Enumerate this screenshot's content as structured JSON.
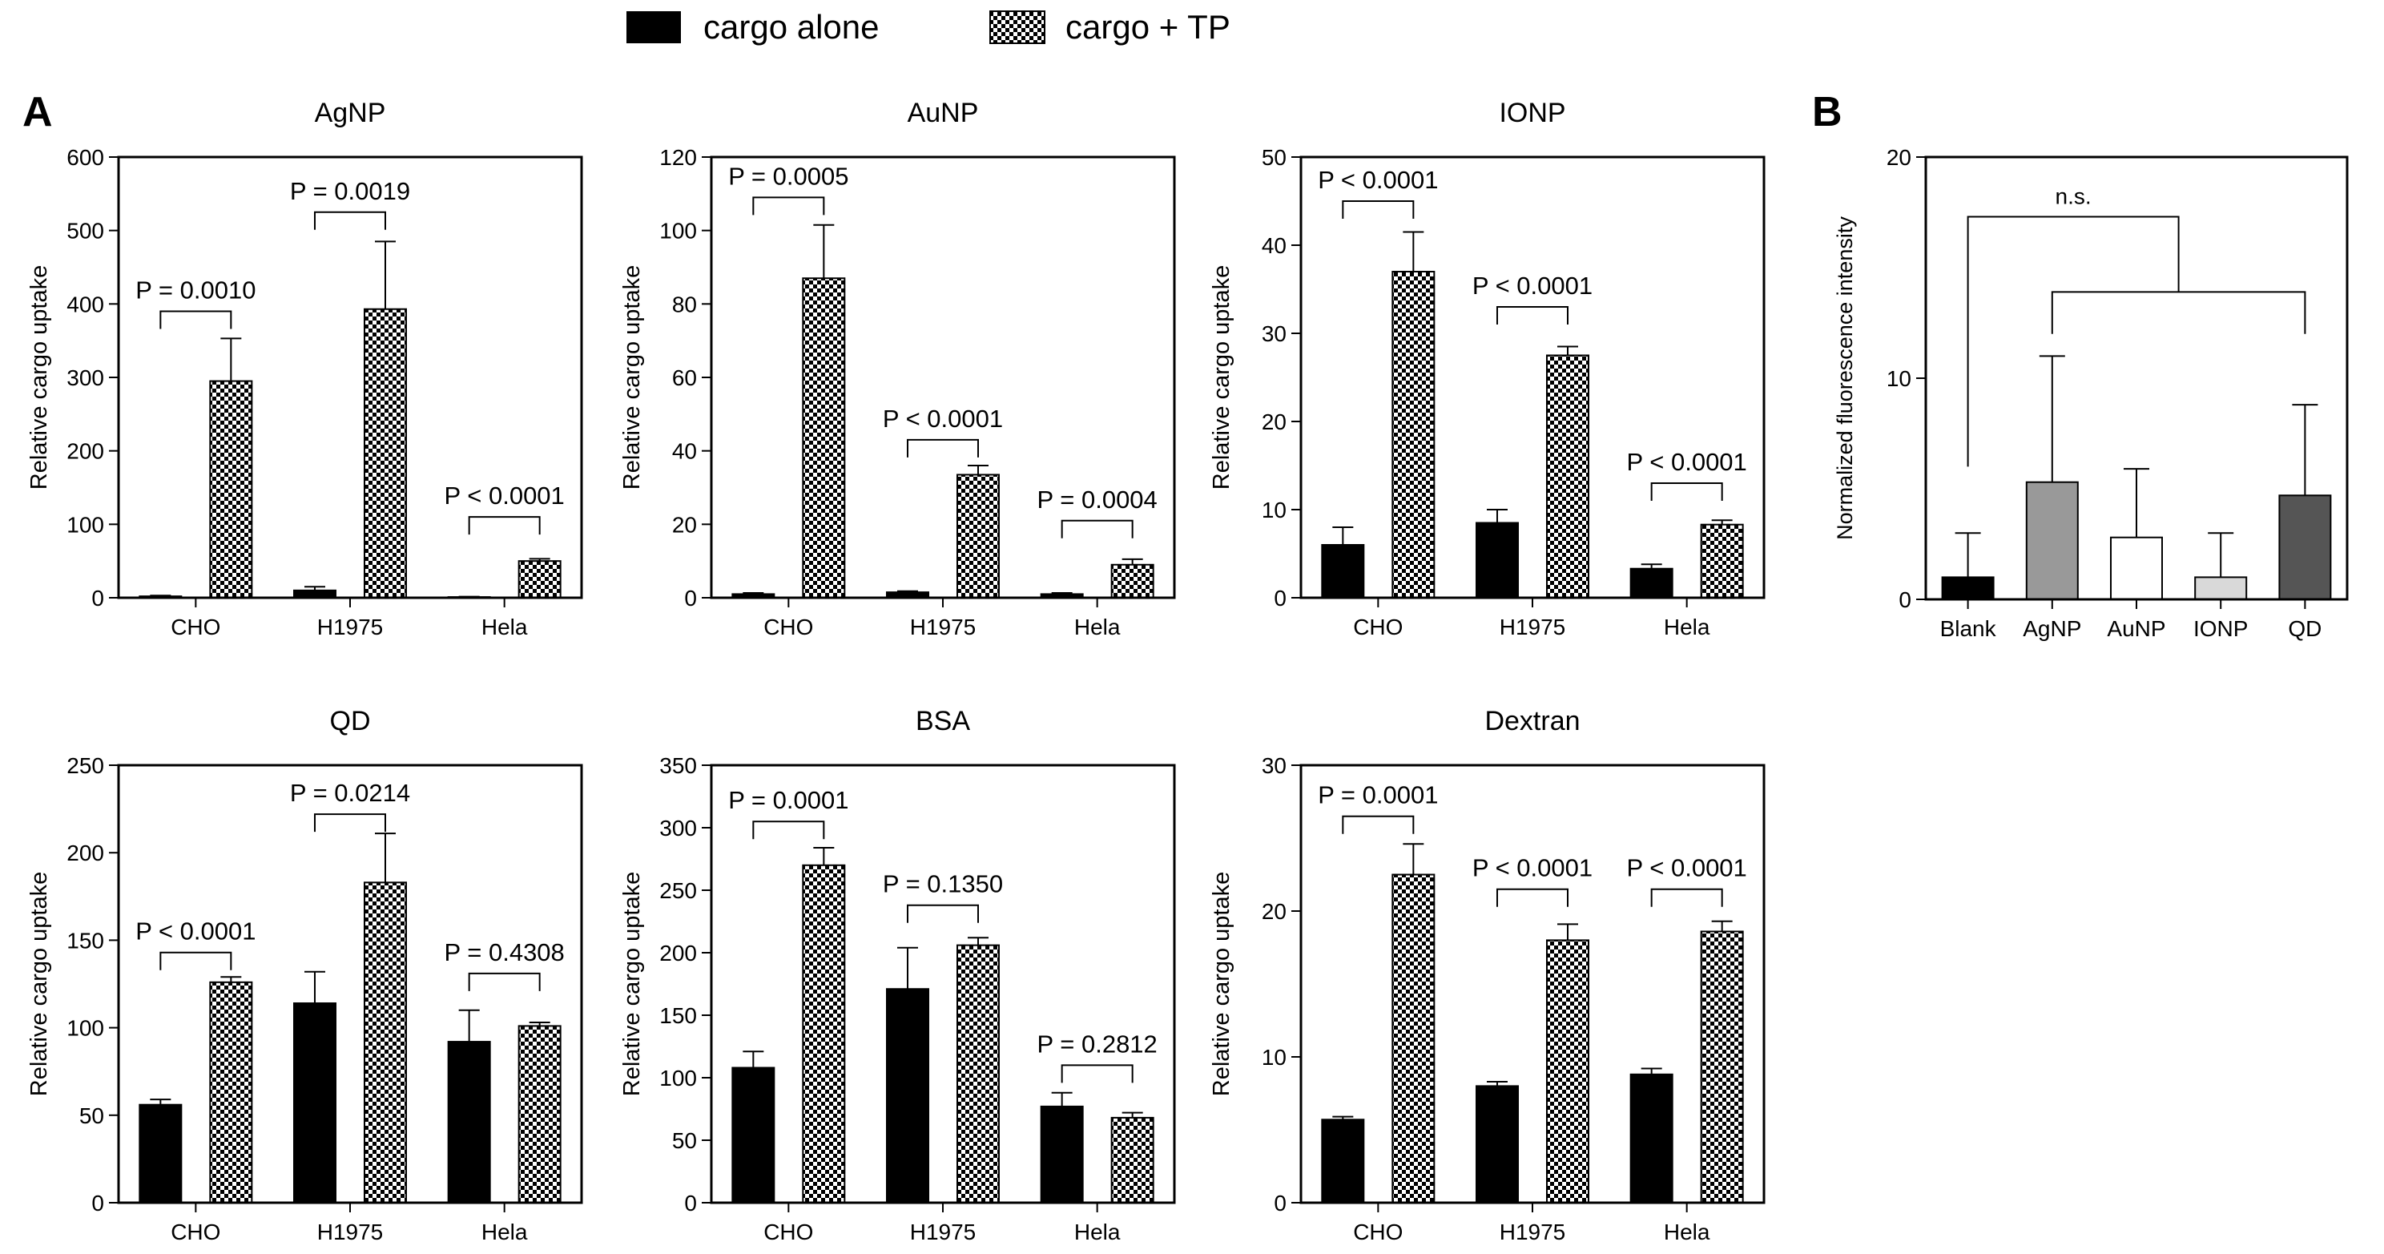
{
  "legend": {
    "series": [
      {
        "name": "cargo alone",
        "fill": "solid"
      },
      {
        "name": "cargo + TP",
        "fill": "checker"
      }
    ]
  },
  "panel_labels": {
    "A": "A",
    "B": "B"
  },
  "chart_data": [
    {
      "type": "bar",
      "panel": "A",
      "title": "AgNP",
      "ylabel": "Relative cargo uptake",
      "xlabel": "",
      "categories": [
        "CHO",
        "H1975",
        "Hela"
      ],
      "ylim": [
        0,
        600
      ],
      "yticks": [
        0,
        100,
        200,
        300,
        400,
        500,
        600
      ],
      "series": [
        {
          "name": "cargo alone",
          "values": [
            2,
            10,
            1
          ],
          "errors": [
            1,
            5,
            0.5
          ]
        },
        {
          "name": "cargo + TP",
          "values": [
            295,
            393,
            50
          ],
          "errors": [
            58,
            92,
            3
          ]
        }
      ],
      "annotations": [
        {
          "category": "CHO",
          "text": "P = 0.0010",
          "top": 390
        },
        {
          "category": "H1975",
          "text": "P = 0.0019",
          "top": 525
        },
        {
          "category": "Hela",
          "text": "P < 0.0001",
          "top": 110
        }
      ]
    },
    {
      "type": "bar",
      "panel": "A",
      "title": "AuNP",
      "ylabel": "Relative cargo uptake",
      "xlabel": "",
      "categories": [
        "CHO",
        "H1975",
        "Hela"
      ],
      "ylim": [
        0,
        120
      ],
      "yticks": [
        0,
        20,
        40,
        60,
        80,
        100,
        120
      ],
      "series": [
        {
          "name": "cargo alone",
          "values": [
            1,
            1.5,
            1
          ],
          "errors": [
            0.3,
            0.3,
            0.3
          ]
        },
        {
          "name": "cargo + TP",
          "values": [
            87,
            33.5,
            9
          ],
          "errors": [
            14.5,
            2.5,
            1.5
          ]
        }
      ],
      "annotations": [
        {
          "category": "CHO",
          "text": "P = 0.0005",
          "top": 109
        },
        {
          "category": "H1975",
          "text": "P < 0.0001",
          "top": 43
        },
        {
          "category": "Hela",
          "text": "P = 0.0004",
          "top": 21
        }
      ]
    },
    {
      "type": "bar",
      "panel": "A",
      "title": "IONP",
      "ylabel": "Relative cargo uptake",
      "xlabel": "",
      "categories": [
        "CHO",
        "H1975",
        "Hela"
      ],
      "ylim": [
        0,
        50
      ],
      "yticks": [
        0,
        10,
        20,
        30,
        40,
        50
      ],
      "series": [
        {
          "name": "cargo alone",
          "values": [
            6,
            8.5,
            3.3
          ],
          "errors": [
            2,
            1.5,
            0.5
          ]
        },
        {
          "name": "cargo + TP",
          "values": [
            37,
            27.5,
            8.3
          ],
          "errors": [
            4.5,
            1,
            0.5
          ]
        }
      ],
      "annotations": [
        {
          "category": "CHO",
          "text": "P < 0.0001",
          "top": 45
        },
        {
          "category": "H1975",
          "text": "P < 0.0001",
          "top": 33
        },
        {
          "category": "Hela",
          "text": "P < 0.0001",
          "top": 13
        }
      ]
    },
    {
      "type": "bar",
      "panel": "A",
      "title": "QD",
      "ylabel": "Relative cargo uptake",
      "xlabel": "",
      "categories": [
        "CHO",
        "H1975",
        "Hela"
      ],
      "ylim": [
        0,
        250
      ],
      "yticks": [
        0,
        50,
        100,
        150,
        200,
        250
      ],
      "series": [
        {
          "name": "cargo alone",
          "values": [
            56,
            114,
            92
          ],
          "errors": [
            3,
            18,
            18
          ]
        },
        {
          "name": "cargo + TP",
          "values": [
            126,
            183,
            101
          ],
          "errors": [
            3,
            28,
            2
          ]
        }
      ],
      "annotations": [
        {
          "category": "CHO",
          "text": "P < 0.0001",
          "top": 143
        },
        {
          "category": "H1975",
          "text": "P = 0.0214",
          "top": 222
        },
        {
          "category": "Hela",
          "text": "P = 0.4308",
          "top": 131
        }
      ]
    },
    {
      "type": "bar",
      "panel": "A",
      "title": "BSA",
      "ylabel": "Relative cargo uptake",
      "xlabel": "",
      "categories": [
        "CHO",
        "H1975",
        "Hela"
      ],
      "ylim": [
        0,
        350
      ],
      "yticks": [
        0,
        50,
        100,
        150,
        200,
        250,
        300,
        350
      ],
      "series": [
        {
          "name": "cargo alone",
          "values": [
            108,
            171,
            77
          ],
          "errors": [
            13,
            33,
            11
          ]
        },
        {
          "name": "cargo + TP",
          "values": [
            270,
            206,
            68
          ],
          "errors": [
            14,
            6,
            4
          ]
        }
      ],
      "annotations": [
        {
          "category": "CHO",
          "text": "P = 0.0001",
          "top": 305
        },
        {
          "category": "H1975",
          "text": "P = 0.1350",
          "top": 238
        },
        {
          "category": "Hela",
          "text": "P = 0.2812",
          "top": 110
        }
      ]
    },
    {
      "type": "bar",
      "panel": "A",
      "title": "Dextran",
      "ylabel": "Relative cargo uptake",
      "xlabel": "",
      "categories": [
        "CHO",
        "H1975",
        "Hela"
      ],
      "ylim": [
        0,
        30
      ],
      "yticks": [
        0,
        10,
        20,
        30
      ],
      "series": [
        {
          "name": "cargo alone",
          "values": [
            5.7,
            8,
            8.8
          ],
          "errors": [
            0.2,
            0.3,
            0.4
          ]
        },
        {
          "name": "cargo + TP",
          "values": [
            22.5,
            18,
            18.6
          ],
          "errors": [
            2.1,
            1.1,
            0.7
          ]
        }
      ],
      "annotations": [
        {
          "category": "CHO",
          "text": "P = 0.0001",
          "top": 26.5
        },
        {
          "category": "H1975",
          "text": "P < 0.0001",
          "top": 21.5
        },
        {
          "category": "Hela",
          "text": "P < 0.0001",
          "top": 21.5
        }
      ]
    },
    {
      "type": "bar",
      "panel": "B",
      "title": "",
      "ylabel": "Normalized fluorescence intensity",
      "xlabel": "",
      "categories": [
        "Blank",
        "AgNP",
        "AuNP",
        "IONP",
        "QD"
      ],
      "ylim": [
        0,
        20
      ],
      "yticks": [
        0,
        10,
        20
      ],
      "values": [
        1,
        5.3,
        2.8,
        1,
        4.7
      ],
      "errors": [
        2,
        5.7,
        3.1,
        2,
        4.1
      ],
      "colors": [
        "#000000",
        "#999999",
        "#ffffff",
        "#d9d9d9",
        "#555555"
      ],
      "annotation": {
        "text": "n.s.",
        "groups": [
          [
            "Blank"
          ],
          [
            "AgNP",
            "AuNP",
            "IONP",
            "QD"
          ]
        ]
      }
    }
  ]
}
